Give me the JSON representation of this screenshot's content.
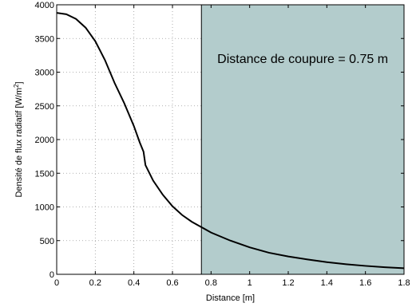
{
  "chart_data": {
    "type": "line",
    "xlabel": "Distance [m]",
    "ylabel_main": "Densité de flux radiatif [W/m",
    "ylabel_sup": "2",
    "ylabel_end": "]",
    "xlim": [
      0,
      1.8
    ],
    "ylim": [
      0,
      4000
    ],
    "x_ticks": [
      0,
      0.2,
      0.4,
      0.6,
      0.8,
      1,
      1.2,
      1.4,
      1.6,
      1.8
    ],
    "x_tick_labels": [
      "0",
      "0.2",
      "0.4",
      "0.6",
      "0.8",
      "1",
      "1.2",
      "1.4",
      "1.6",
      "1.8"
    ],
    "y_ticks": [
      0,
      500,
      1000,
      1500,
      2000,
      2500,
      3000,
      3500,
      4000
    ],
    "y_tick_labels": [
      "0",
      "500",
      "1000",
      "1500",
      "2000",
      "2500",
      "3000",
      "3500",
      "4000"
    ],
    "grid": true,
    "shaded_region": {
      "x_start": 0.75,
      "x_end": 1.8,
      "color": "#b3cccc",
      "label": "Distance de coupure = 0.75 m"
    },
    "series": [
      {
        "color": "#000000",
        "x": [
          0,
          0.05,
          0.1,
          0.15,
          0.2,
          0.25,
          0.3,
          0.35,
          0.4,
          0.43,
          0.45,
          0.46,
          0.5,
          0.55,
          0.6,
          0.65,
          0.7,
          0.75,
          0.8,
          0.9,
          1.0,
          1.1,
          1.2,
          1.3,
          1.4,
          1.5,
          1.6,
          1.7,
          1.8
        ],
        "y": [
          3880,
          3860,
          3790,
          3660,
          3460,
          3180,
          2840,
          2540,
          2200,
          1960,
          1820,
          1620,
          1390,
          1180,
          1010,
          880,
          780,
          700,
          620,
          500,
          400,
          320,
          265,
          220,
          180,
          150,
          125,
          105,
          90
        ]
      }
    ]
  }
}
